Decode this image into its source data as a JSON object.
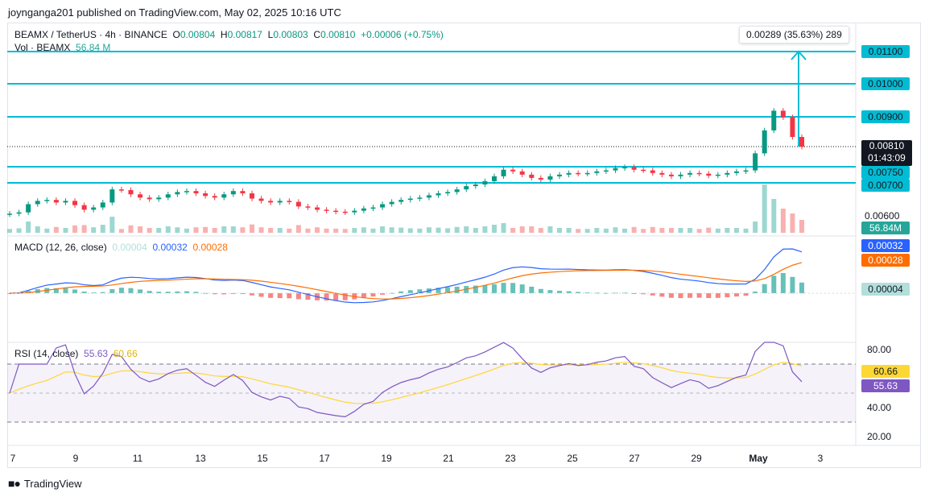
{
  "publish_text": "joynganga201 published on TradingView.com, May 02, 2025 10:16 UTC",
  "symbol_line": {
    "title": "BEAMX / TetherUS · 4h · BINANCE",
    "o_label": "O",
    "o_value": "0.00804",
    "h_label": "H",
    "h_value": "0.00817",
    "l_label": "L",
    "l_value": "0.00803",
    "c_label": "C",
    "c_value": "0.00810",
    "change": "+0.00006 (+0.75%)"
  },
  "volume_legend": {
    "label": "Vol · BEAMX",
    "value": "56.84 M"
  },
  "macd_legend": {
    "label": "MACD (12, 26, close)",
    "histogram": "0.00004",
    "macd": "0.00032",
    "signal": "0.00028"
  },
  "rsi_legend": {
    "label": "RSI (14, close)",
    "rsi": "55.63",
    "ma": "60.66"
  },
  "measure_box": "0.00289 (35.63%) 289",
  "price_tag": {
    "price": "0.00810",
    "countdown": "01:43:09"
  },
  "level_labels": [
    "0.01100",
    "0.01000",
    "0.00900",
    "0.00750",
    "0.00700"
  ],
  "axis_labels": {
    "price_low": "0.00600",
    "volume": "56.84M",
    "macd_hist": "0.00004",
    "macd": "0.00032",
    "signal": "0.00028",
    "rsi_ma": "60.66",
    "rsi": "55.63",
    "rsi_80": "80.00",
    "rsi_40": "40.00",
    "rsi_20": "20.00"
  },
  "x_labels": [
    "7",
    "9",
    "11",
    "13",
    "15",
    "17",
    "19",
    "21",
    "23",
    "25",
    "27",
    "29",
    "May",
    "3"
  ],
  "brand": "TradingView",
  "colors": {
    "up": "#089981",
    "down": "#f23645",
    "level": "#00bcd4",
    "macd": "#2962ff",
    "signal": "#ff6d00",
    "rsi": "#7e57c2",
    "rsi_ma": "#fdd835"
  },
  "chart_data": {
    "type": "candlestick",
    "symbol": "BEAMX / TetherUS",
    "timeframe": "4h",
    "exchange": "BINANCE",
    "x_ticks": [
      "7",
      "9",
      "11",
      "13",
      "15",
      "17",
      "19",
      "21",
      "23",
      "25",
      "27",
      "29",
      "May",
      "3"
    ],
    "horizontal_levels": [
      0.011,
      0.01,
      0.009,
      0.0075,
      0.007
    ],
    "last": {
      "open": 0.00804,
      "high": 0.00817,
      "low": 0.00803,
      "close": 0.0081
    },
    "measure": {
      "from": 0.00811,
      "to": 0.011,
      "change": 0.00289,
      "percent": 35.63,
      "ticks": 289
    },
    "price_close_series": [
      0.00606,
      0.0061,
      0.00635,
      0.00645,
      0.00648,
      0.0064,
      0.00645,
      0.00632,
      0.00618,
      0.00625,
      0.0064,
      0.0068,
      0.00678,
      0.00665,
      0.00655,
      0.0065,
      0.00655,
      0.00665,
      0.00672,
      0.00675,
      0.00668,
      0.0066,
      0.00655,
      0.00665,
      0.00675,
      0.00668,
      0.00652,
      0.00645,
      0.0064,
      0.00645,
      0.00642,
      0.00628,
      0.00625,
      0.00618,
      0.00615,
      0.00612,
      0.0061,
      0.00615,
      0.00622,
      0.00625,
      0.00635,
      0.00642,
      0.00648,
      0.00652,
      0.00655,
      0.00662,
      0.00668,
      0.00672,
      0.0068,
      0.0069,
      0.00695,
      0.00705,
      0.0072,
      0.0074,
      0.00735,
      0.00725,
      0.00715,
      0.0071,
      0.0072,
      0.00725,
      0.0073,
      0.00728,
      0.0073,
      0.00735,
      0.00738,
      0.00745,
      0.00748,
      0.0074,
      0.00738,
      0.0073,
      0.00725,
      0.0072,
      0.00725,
      0.0073,
      0.00728,
      0.00722,
      0.00725,
      0.0073,
      0.00735,
      0.00738,
      0.0079,
      0.0086,
      0.0092,
      0.009,
      0.0084,
      0.0081
    ],
    "volume_last_m": 56.84,
    "macd": {
      "params": "12, 26, close",
      "histogram": 4e-05,
      "macd": 0.00032,
      "signal": 0.00028
    },
    "rsi": {
      "params": "14, close",
      "rsi": 55.63,
      "ma": 60.66,
      "bands": [
        70,
        50,
        30
      ],
      "axis_ticks": [
        80,
        40,
        20
      ]
    }
  }
}
